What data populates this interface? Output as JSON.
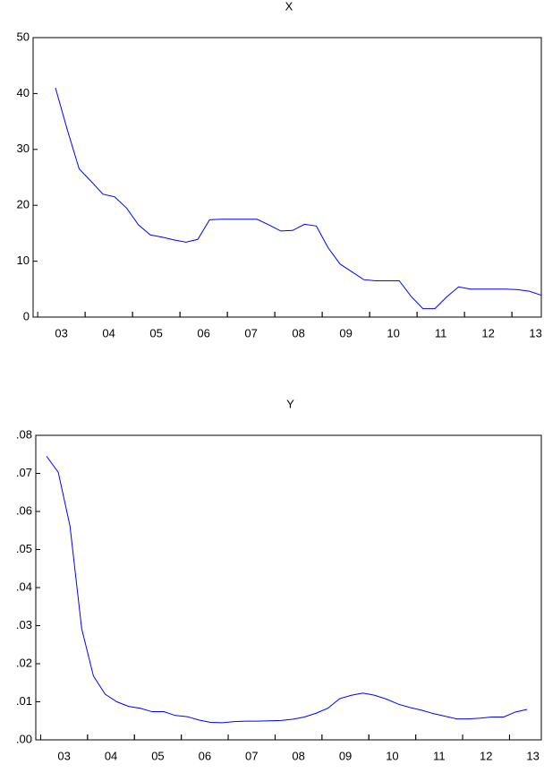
{
  "chart_data": [
    {
      "type": "line",
      "title": "X",
      "categories": [
        "03",
        null,
        null,
        null,
        "04",
        null,
        null,
        null,
        "05",
        null,
        null,
        null,
        "06",
        null,
        null,
        null,
        "07",
        null,
        null,
        null,
        "08",
        null,
        null,
        null,
        "09",
        null,
        null,
        null,
        "10",
        null,
        null,
        null,
        "11",
        null,
        null,
        null,
        "12",
        null,
        null,
        null,
        "13",
        null
      ],
      "series": [
        {
          "name": "X",
          "color": "#0000ff",
          "values": [
            41,
            33.5,
            26.5,
            24.3,
            22,
            21.5,
            19.5,
            16.5,
            14.7,
            14.3,
            13.8,
            13.4,
            13.9,
            17.4,
            17.5,
            17.5,
            17.5,
            17.5,
            16.5,
            15.4,
            15.5,
            16.6,
            16.3,
            12.4,
            9.5,
            8.1,
            6.7,
            6.5,
            6.5,
            6.5,
            3.7,
            1.5,
            1.5,
            3.6,
            5.4,
            5.0,
            5.0,
            5.0,
            5.0,
            4.9,
            4.6,
            3.9
          ]
        }
      ],
      "ylim": [
        0,
        50
      ],
      "yticks": [
        0,
        10,
        20,
        30,
        40,
        50
      ]
    },
    {
      "type": "line",
      "title": "Y",
      "categories": [
        null,
        "03",
        null,
        null,
        null,
        "04",
        null,
        null,
        null,
        "05",
        null,
        null,
        null,
        "06",
        null,
        null,
        null,
        "07",
        null,
        null,
        null,
        "08",
        null,
        null,
        null,
        "09",
        null,
        null,
        null,
        "10",
        null,
        null,
        null,
        "11",
        null,
        null,
        null,
        "12",
        null,
        null,
        null,
        "13"
      ],
      "series": [
        {
          "name": "Y",
          "color": "#0000ff",
          "values": [
            0.0745,
            0.0703,
            0.0562,
            0.0292,
            0.0168,
            0.012,
            0.01,
            0.0088,
            0.0083,
            0.0074,
            0.0074,
            0.0064,
            0.0061,
            0.0052,
            0.0046,
            0.0045,
            0.0048,
            0.0049,
            0.0049,
            0.005,
            0.0051,
            0.0054,
            0.006,
            0.007,
            0.0083,
            0.0108,
            0.0117,
            0.0123,
            0.0117,
            0.0107,
            0.0094,
            0.0085,
            0.0078,
            0.0069,
            0.0062,
            0.0055,
            0.0055,
            0.0057,
            0.006,
            0.006,
            0.0073,
            0.008
          ]
        }
      ],
      "ylim": [
        0,
        0.08
      ],
      "yticks": [
        {
          "value": 0,
          "label": ".00"
        },
        {
          "value": 0.01,
          "label": ".01"
        },
        {
          "value": 0.02,
          "label": ".02"
        },
        {
          "value": 0.03,
          "label": ".03"
        },
        {
          "value": 0.04,
          "label": ".04"
        },
        {
          "value": 0.05,
          "label": ".05"
        },
        {
          "value": 0.06,
          "label": ".06"
        },
        {
          "value": 0.07,
          "label": ".07"
        },
        {
          "value": 0.08,
          "label": ".08"
        }
      ]
    }
  ]
}
